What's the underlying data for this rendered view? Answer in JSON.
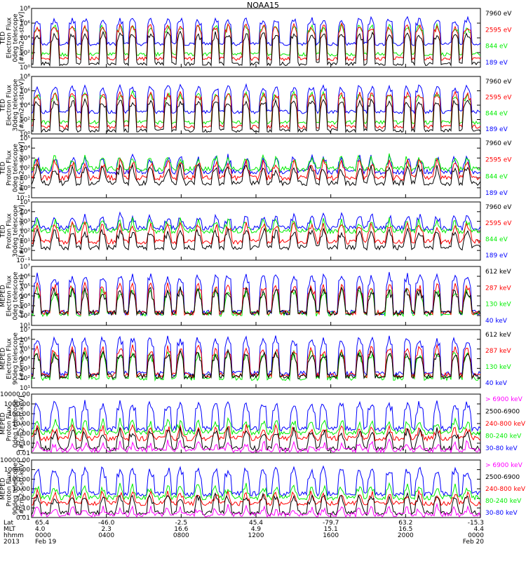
{
  "title": "NOAA15",
  "colors": {
    "blue": "#0000ff",
    "red": "#ff0000",
    "green": "#00ee00",
    "black": "#000000",
    "magenta": "#ff00ff"
  },
  "chart_data": [
    {
      "type": "line",
      "scale": "log",
      "ylabel": [
        "TED",
        "Electron Flux",
        "0deg telescope",
        "[#/cm2-s-str-eV]"
      ],
      "yticks": [
        "10⁰",
        "10²",
        "10⁴",
        "10⁶",
        "10⁸"
      ],
      "ylim": [
        1,
        100000000.0
      ],
      "series": [
        {
          "name": "7960 eV",
          "color": "black",
          "base": 3,
          "peak": 100000.0
        },
        {
          "name": "2595 eV",
          "color": "red",
          "base": 15,
          "peak": 1000000.0
        },
        {
          "name": "844 eV",
          "color": "green",
          "base": 60,
          "peak": 1000000.0
        },
        {
          "name": "189 eV",
          "color": "blue",
          "base": 1500,
          "peak": 10000000.0
        }
      ]
    },
    {
      "type": "line",
      "scale": "log",
      "ylabel": [
        "TED",
        "Electron Flux",
        "30deg telescope",
        "[#/cm2-s-str-eV]"
      ],
      "yticks": [
        "10⁰",
        "10²",
        "10⁴",
        "10⁶",
        "10⁸"
      ],
      "ylim": [
        1,
        100000000.0
      ],
      "series": [
        {
          "name": "7960 eV",
          "color": "black",
          "base": 3,
          "peak": 100000.0
        },
        {
          "name": "2595 eV",
          "color": "red",
          "base": 10,
          "peak": 1000000.0
        },
        {
          "name": "844 eV",
          "color": "green",
          "base": 40,
          "peak": 1000000.0
        },
        {
          "name": "189 eV",
          "color": "blue",
          "base": 1200,
          "peak": 10000000.0
        }
      ]
    },
    {
      "type": "line",
      "scale": "log",
      "ylabel": [
        "TED",
        "Proton Flux",
        "0deg telescope",
        "[#/cm2-s-str-eV]"
      ],
      "yticks": [
        "10⁻¹",
        "10⁰",
        "10¹",
        "10²",
        "10³",
        "10⁴",
        "10⁵"
      ],
      "ylim": [
        0.1,
        100000.0
      ],
      "series": [
        {
          "name": "7960 eV",
          "color": "black",
          "base": 3,
          "peak": 300
        },
        {
          "name": "2595 eV",
          "color": "red",
          "base": 10,
          "peak": 1000
        },
        {
          "name": "844 eV",
          "color": "green",
          "base": 80,
          "peak": 3000
        },
        {
          "name": "189 eV",
          "color": "blue",
          "base": 40,
          "peak": 3000
        }
      ]
    },
    {
      "type": "line",
      "scale": "log",
      "ylabel": [
        "TED",
        "Proton Flux",
        "30deg telescope",
        "[#/cm2-s-str-eV]"
      ],
      "yticks": [
        "10⁻¹",
        "10⁰",
        "10¹",
        "10²",
        "10³",
        "10⁴",
        "10⁵"
      ],
      "ylim": [
        0.1,
        100000.0
      ],
      "series": [
        {
          "name": "7960 eV",
          "color": "black",
          "base": 2,
          "peak": 300
        },
        {
          "name": "2595 eV",
          "color": "red",
          "base": 8,
          "peak": 1000
        },
        {
          "name": "844 eV",
          "color": "green",
          "base": 100,
          "peak": 3000
        },
        {
          "name": "189 eV",
          "color": "blue",
          "base": 200,
          "peak": 10000
        }
      ]
    },
    {
      "type": "line",
      "scale": "log",
      "ylabel": [
        "MEPED",
        "Electron Flux",
        "0deg telescope",
        "[#/cm2-s-str]"
      ],
      "yticks": [
        "10¹",
        "10²",
        "10³",
        "10⁴",
        "10⁵",
        "10⁶",
        "10⁷"
      ],
      "ylim": [
        10,
        10000000.0
      ],
      "series": [
        {
          "name": "612 keV",
          "color": "black",
          "base": 200,
          "peak": 100000.0
        },
        {
          "name": "287 keV",
          "color": "red",
          "base": 200,
          "peak": 300000.0
        },
        {
          "name": "130 keV",
          "color": "green",
          "base": 150,
          "peak": 100000.0
        },
        {
          "name": "40 keV",
          "color": "blue",
          "base": 200,
          "peak": 3000000.0
        }
      ]
    },
    {
      "type": "line",
      "scale": "log",
      "ylabel": [
        "MEPED",
        "Electron Flux",
        "90deg telescope",
        "[#/cm2-s-str]"
      ],
      "yticks": [
        "10¹",
        "10²",
        "10³",
        "10⁴",
        "10⁵",
        "10⁶",
        "10⁷"
      ],
      "ylim": [
        10,
        10000000.0
      ],
      "series": [
        {
          "name": "612 keV",
          "color": "black",
          "base": 150,
          "peak": 100000.0
        },
        {
          "name": "287 keV",
          "color": "red",
          "base": 200,
          "peak": 300000.0
        },
        {
          "name": "130 keV",
          "color": "green",
          "base": 100,
          "peak": 100000.0
        },
        {
          "name": "40 keV",
          "color": "blue",
          "base": 300,
          "peak": 3000000.0
        }
      ]
    },
    {
      "type": "line",
      "scale": "log",
      "ylabel": [
        "MEPED",
        "Proton Flux",
        "0deg telescope",
        "[#/cm2-s-str-keV]"
      ],
      "yticks": [
        "0.01",
        "0.10",
        "1.00",
        "10.00",
        "100.00",
        "1000.00",
        "10000.00"
      ],
      "ylim": [
        0.01,
        10000
      ],
      "series": [
        {
          "name": "> 6900 keV",
          "color": "magenta",
          "base": 0.02,
          "peak": 0.3
        },
        {
          "name": "2500-6900",
          "color": "black",
          "base": 0.03,
          "peak": 5
        },
        {
          "name": "240-800 keV",
          "color": "red",
          "base": 0.3,
          "peak": 10
        },
        {
          "name": "80-240 keV",
          "color": "green",
          "base": 1.2,
          "peak": 50
        },
        {
          "name": "30-80 keV",
          "color": "blue",
          "base": 3,
          "peak": 3000
        }
      ]
    },
    {
      "type": "line",
      "scale": "log",
      "ylabel": [
        "MEPED",
        "Proton Flux",
        "90deg telescope",
        "[#/cm2-s-str-keV]"
      ],
      "yticks": [
        "0.01",
        "0.10",
        "1.00",
        "10.00",
        "100.00",
        "1000.00",
        "10000.00"
      ],
      "ylim": [
        0.01,
        10000
      ],
      "series": [
        {
          "name": "> 6900 keV",
          "color": "magenta",
          "base": 0.02,
          "peak": 0.3
        },
        {
          "name": "2500-6900",
          "color": "black",
          "base": 0.03,
          "peak": 5
        },
        {
          "name": "240-800 keV",
          "color": "red",
          "base": 0.3,
          "peak": 10
        },
        {
          "name": "80-240 keV",
          "color": "green",
          "base": 1.2,
          "peak": 50
        },
        {
          "name": "30-80 keV",
          "color": "blue",
          "base": 3,
          "peak": 3000
        }
      ]
    }
  ],
  "xaxis": {
    "row_labels": [
      "Lat",
      "MLT",
      "hhmm",
      "2013"
    ],
    "columns": [
      {
        "lat": "65.4",
        "mlt": "4.0",
        "hhmm": "0000",
        "date": "Feb 19"
      },
      {
        "lat": "-46.0",
        "mlt": "2.3",
        "hhmm": "0400",
        "date": ""
      },
      {
        "lat": "-2.5",
        "mlt": "16.6",
        "hhmm": "0800",
        "date": ""
      },
      {
        "lat": "45.4",
        "mlt": "4.9",
        "hhmm": "1200",
        "date": ""
      },
      {
        "lat": "-79.7",
        "mlt": "15.1",
        "hhmm": "1600",
        "date": ""
      },
      {
        "lat": "63.2",
        "mlt": "16.5",
        "hhmm": "2000",
        "date": ""
      },
      {
        "lat": "-15.3",
        "mlt": "4.4",
        "hhmm": "0000",
        "date": "Feb 20"
      }
    ]
  }
}
